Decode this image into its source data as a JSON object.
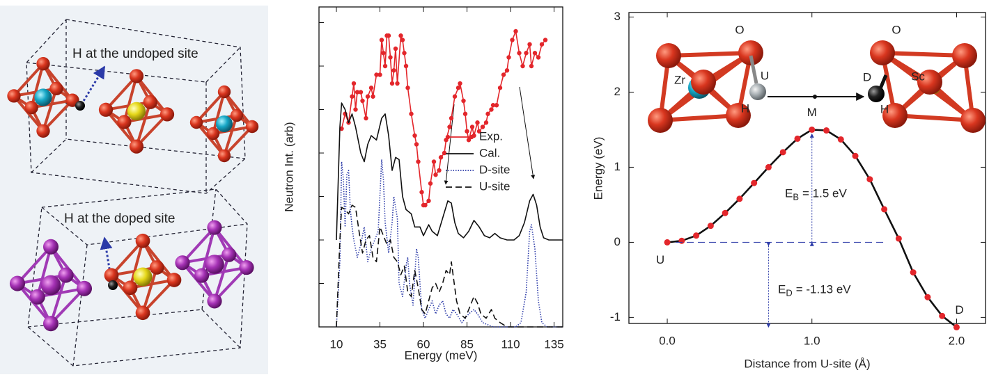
{
  "illustration": {
    "labels": [
      "H at the undoped site",
      "H at the doped site"
    ]
  },
  "chart_data": [
    {
      "type": "line",
      "xlabel": "Energy (meV)",
      "ylabel": "Neutron Int. (arb)",
      "xlim": [
        0,
        140
      ],
      "xticks": [
        10,
        35,
        60,
        85,
        110,
        135
      ],
      "ylim": [
        0,
        7.36
      ],
      "yticks": [
        0,
        1,
        2,
        3,
        4,
        5,
        6,
        7
      ],
      "legend": "center right",
      "series": [
        {
          "name": "Exp.",
          "color": "#e3262b",
          "dash": "solid",
          "marker": true,
          "x": [
            13,
            15,
            17,
            19,
            20,
            21,
            22,
            24,
            25,
            27,
            28,
            30,
            31,
            33,
            35,
            36,
            37,
            38,
            39,
            40,
            41,
            42,
            43,
            44,
            45,
            47,
            48,
            49,
            50,
            51,
            53,
            55,
            56,
            57,
            59,
            60,
            61,
            63,
            64,
            66,
            67,
            69,
            70,
            72,
            73,
            75,
            76,
            78,
            80,
            81,
            83,
            84,
            85,
            86,
            88,
            89,
            91,
            92,
            94,
            96,
            97,
            99,
            100,
            102,
            104,
            106,
            108,
            109,
            111,
            113,
            115,
            117,
            119,
            121,
            122,
            124,
            126,
            128,
            130
          ],
          "values": [
            4.56,
            4.9,
            4.7,
            5.3,
            5.6,
            5.0,
            5.4,
            5.4,
            5.2,
            4.8,
            5.3,
            5.5,
            5.3,
            5.8,
            5.8,
            6.6,
            6.3,
            6.0,
            6.7,
            6.7,
            6.2,
            5.6,
            5.9,
            6.4,
            5.6,
            6.7,
            6.6,
            6.3,
            6.0,
            5.5,
            4.9,
            4.4,
            4.2,
            3.8,
            3.1,
            2.8,
            2.8,
            2.9,
            3.3,
            3.8,
            3.5,
            3.6,
            3.9,
            4.0,
            4.3,
            4.6,
            4.8,
            5.3,
            5.5,
            5.6,
            5.2,
            4.9,
            4.5,
            4.3,
            4.6,
            4.4,
            4.7,
            4.5,
            4.6,
            4.7,
            4.9,
            5.0,
            5.1,
            5.1,
            5.5,
            5.8,
            5.9,
            6.2,
            6.6,
            6.8,
            6.3,
            6.0,
            6.3,
            6.5,
            6.0,
            6.3,
            6.2,
            6.5,
            6.6
          ]
        },
        {
          "name": "Cal.",
          "color": "#111111",
          "dash": "solid",
          "marker": false,
          "x": [
            10,
            12,
            13,
            15,
            17,
            19,
            21,
            24,
            26,
            28,
            30,
            33,
            36,
            38,
            40,
            42,
            44,
            46,
            48,
            50,
            53,
            55,
            58,
            60,
            63,
            65,
            68,
            71,
            74,
            76,
            78,
            80,
            83,
            86,
            89,
            92,
            95,
            98,
            101,
            104,
            108,
            112,
            115,
            118,
            121,
            123,
            125,
            127,
            129,
            132,
            135,
            140
          ],
          "values": [
            2.0,
            4.6,
            5.15,
            5.0,
            4.7,
            4.9,
            4.6,
            4.0,
            3.8,
            4.2,
            4.4,
            4.3,
            4.8,
            4.9,
            4.4,
            3.6,
            3.9,
            3.85,
            3.0,
            2.7,
            2.6,
            2.3,
            2.3,
            2.1,
            2.35,
            2.2,
            2.1,
            2.5,
            2.9,
            2.85,
            2.4,
            2.15,
            2.05,
            2.2,
            2.45,
            2.3,
            2.1,
            2.05,
            2.15,
            2.05,
            2.0,
            2.0,
            2.1,
            2.4,
            2.9,
            3.05,
            2.8,
            2.3,
            2.05,
            2.0,
            2.0,
            2.0
          ]
        },
        {
          "name": "D-site",
          "color": "#2b3aa8",
          "dash": "dotted",
          "marker": false,
          "x": [
            10,
            12,
            13,
            14,
            15,
            16,
            17,
            18,
            19,
            20,
            22,
            24,
            26,
            28,
            30,
            32,
            34,
            36,
            37,
            38,
            40,
            42,
            43,
            45,
            46,
            48,
            50,
            51,
            52,
            54,
            56,
            57,
            59,
            61,
            63,
            65,
            67,
            69,
            71,
            73,
            75,
            77,
            79,
            82,
            86,
            89,
            91,
            94,
            100,
            113,
            116,
            119,
            121,
            122,
            124,
            126,
            128,
            131,
            140
          ],
          "values": [
            0,
            1.5,
            3.8,
            3.4,
            2.3,
            3.5,
            3.6,
            2.7,
            2.3,
            2.0,
            1.6,
            1.9,
            2.3,
            1.5,
            1.8,
            2.0,
            2.2,
            3.85,
            3.4,
            2.4,
            1.7,
            2.4,
            3.0,
            2.5,
            1.0,
            0.7,
            1.4,
            1.6,
            1.0,
            0.5,
            1.8,
            1.6,
            0.4,
            0.2,
            0.4,
            0.6,
            0.3,
            0.5,
            0.6,
            0.3,
            0.2,
            0.4,
            0.3,
            0.1,
            0.3,
            0.4,
            0.3,
            0.1,
            0,
            0,
            0.1,
            0.8,
            2.2,
            2.35,
            1.8,
            0.6,
            0.1,
            0,
            0
          ]
        },
        {
          "name": "U-site",
          "color": "#111111",
          "dash": "dashed",
          "marker": false,
          "x": [
            10,
            12,
            13,
            15,
            17,
            19,
            21,
            23,
            25,
            27,
            29,
            31,
            33,
            35,
            37,
            39,
            41,
            43,
            45,
            47,
            49,
            51,
            53,
            55,
            57,
            59,
            61,
            63,
            65,
            67,
            69,
            71,
            73,
            75,
            76,
            77,
            79,
            81,
            84,
            87,
            89,
            91,
            93,
            96,
            99,
            101,
            104,
            108,
            140
          ],
          "values": [
            0,
            2.0,
            2.75,
            2.7,
            2.6,
            2.8,
            2.75,
            2.2,
            1.7,
            2.0,
            2.1,
            1.6,
            1.5,
            2.3,
            2.1,
            1.9,
            2.0,
            1.6,
            1.5,
            1.2,
            1.4,
            0.8,
            0.7,
            1.3,
            0.9,
            0.4,
            0.3,
            0.6,
            0.9,
            1.0,
            0.8,
            1.0,
            1.3,
            1.2,
            1.5,
            1.2,
            0.6,
            0.3,
            0.2,
            0.5,
            0.7,
            0.55,
            0.3,
            0.2,
            0.4,
            0.2,
            0.1,
            0,
            0
          ]
        }
      ]
    },
    {
      "type": "line",
      "xlabel": "Distance from U-site (Å)",
      "ylabel": "Energy (eV)",
      "xlim": [
        -0.265,
        2.2
      ],
      "xticks": [
        {
          "value": 0,
          "label": "0.0"
        },
        {
          "value": 1,
          "label": "1.0"
        },
        {
          "value": 2,
          "label": "2.0"
        }
      ],
      "ylim": [
        -1.08,
        3.06
      ],
      "yticks": [
        -1,
        0,
        1,
        2,
        3
      ],
      "x": [
        0,
        0.1,
        0.2,
        0.3,
        0.4,
        0.5,
        0.6,
        0.7,
        0.8,
        0.9,
        1.0,
        1.1,
        1.2,
        1.3,
        1.4,
        1.5,
        1.6,
        1.7,
        1.8,
        1.9,
        2.0
      ],
      "values": [
        0,
        0.02,
        0.09,
        0.22,
        0.39,
        0.58,
        0.79,
        1.0,
        1.2,
        1.38,
        1.5,
        1.49,
        1.37,
        1.15,
        0.84,
        0.44,
        0.05,
        -0.4,
        -0.73,
        -0.98,
        -1.13
      ],
      "point_labels": [
        "U",
        null,
        null,
        null,
        null,
        null,
        null,
        null,
        null,
        null,
        "M",
        null,
        null,
        null,
        null,
        null,
        null,
        null,
        null,
        null,
        "D"
      ],
      "color": "#111111",
      "marker_color": "#e3262b",
      "energy_labels": [
        {
          "symbol": "E",
          "subscript": "B",
          "text": "= 1.5 eV"
        },
        {
          "symbol": "E",
          "subscript": "D",
          "text": "= -1.13 eV"
        }
      ],
      "inset_labels": [
        "Zr",
        "O",
        "U",
        "H",
        "D",
        "H",
        "Sc",
        "O"
      ]
    }
  ]
}
